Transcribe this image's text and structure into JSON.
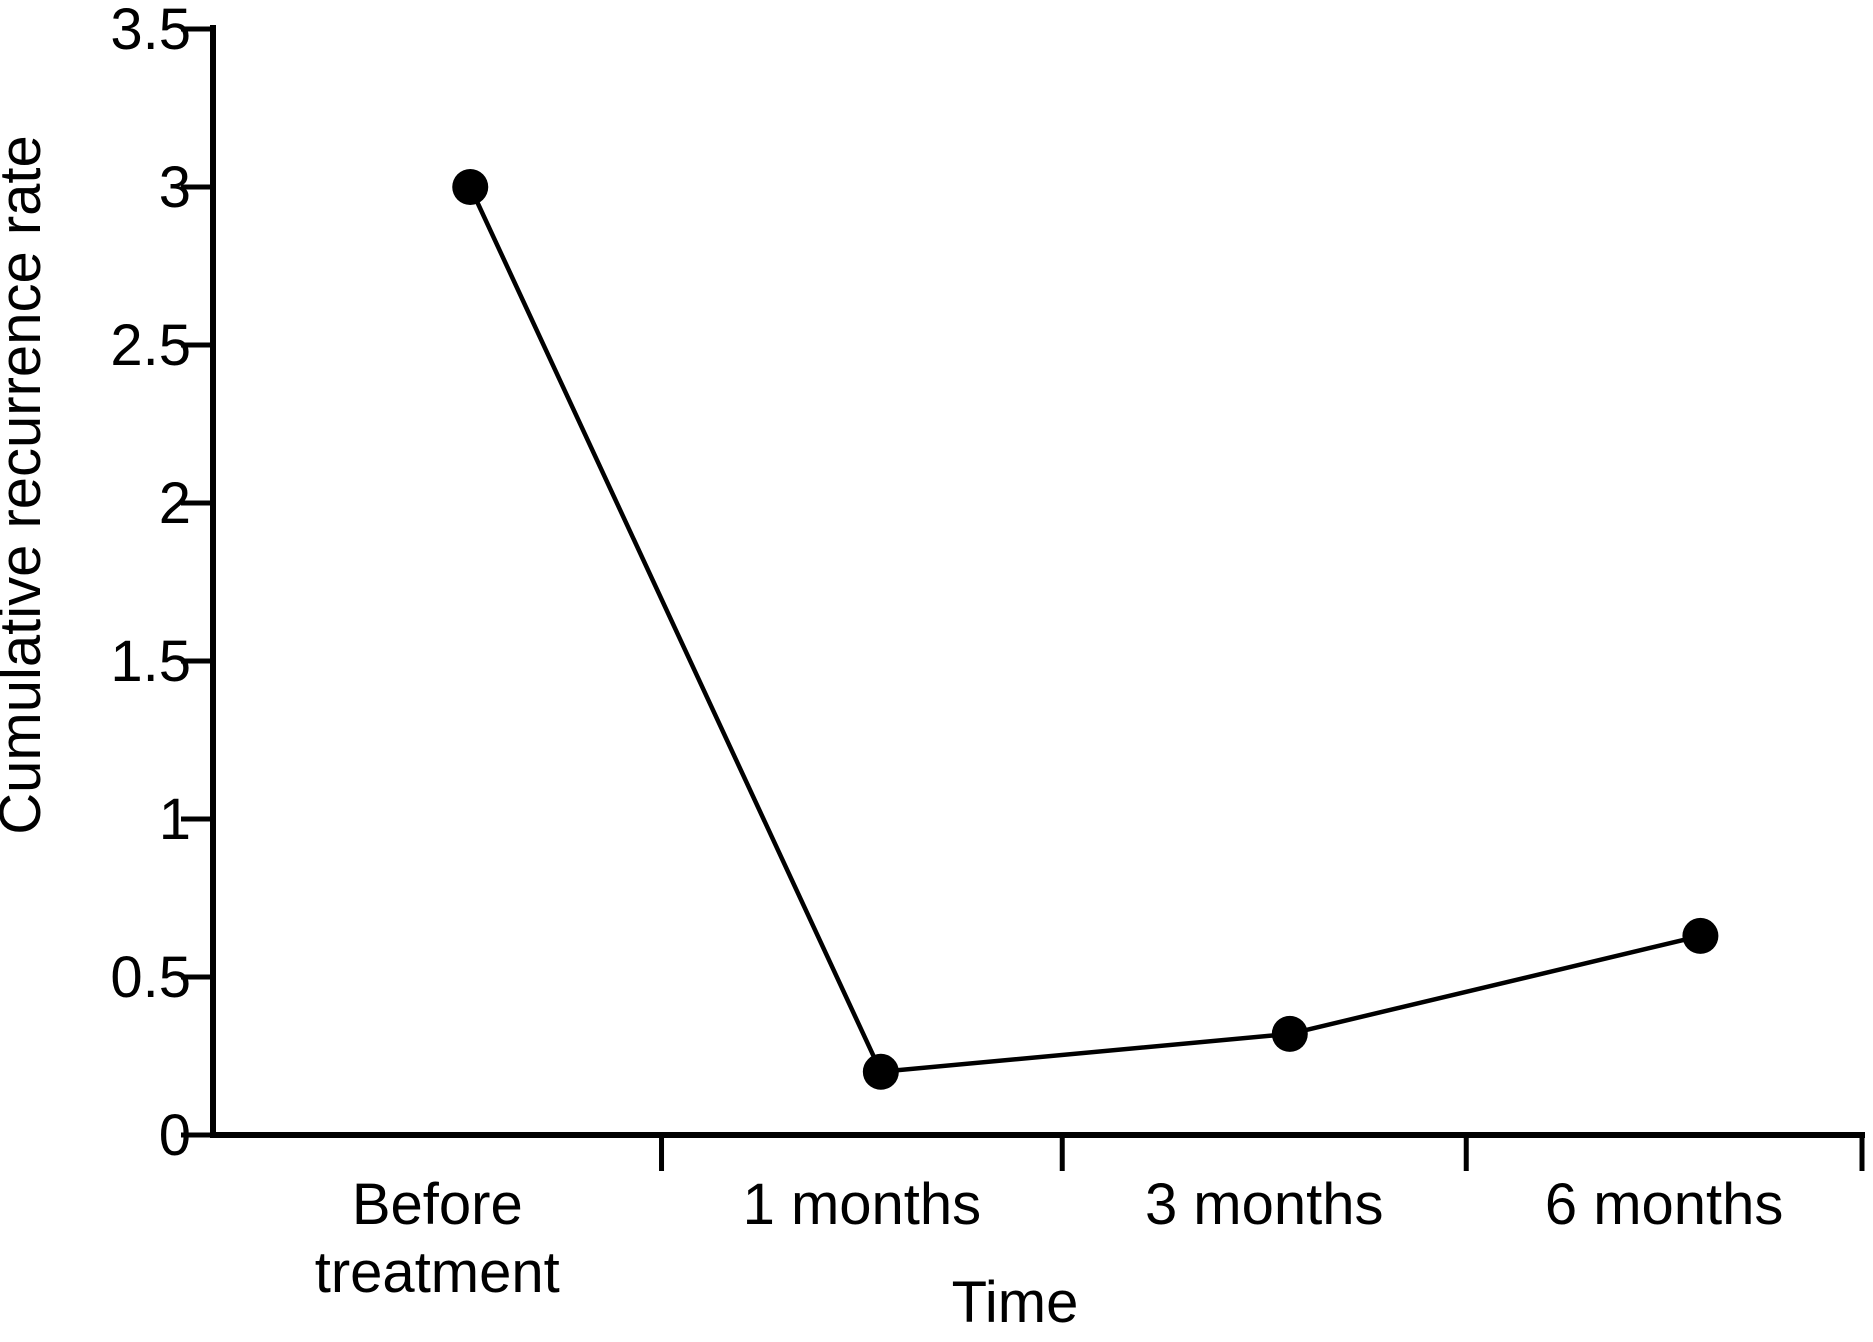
{
  "figure": {
    "background": "#ffffff",
    "ink_color": "#000000"
  },
  "chart_data": {
    "type": "line",
    "title": "",
    "xlabel": "Time",
    "ylabel": "Cumulative recurrence rate",
    "categories": [
      "Before treatment",
      "1 months",
      "3 months",
      "6 months"
    ],
    "series": [
      {
        "name": "Cumulative recurrence rate",
        "values": [
          3.0,
          0.2,
          0.32,
          0.63
        ]
      }
    ],
    "ylim": [
      0,
      3.5
    ],
    "yticks": [
      0,
      0.5,
      1,
      1.5,
      2,
      2.5,
      3,
      3.5
    ],
    "ytick_labels": [
      "0",
      "0.5",
      "1",
      "1.5",
      "2",
      "2.5",
      "3",
      "3.5"
    ],
    "grid": false,
    "legend": "none",
    "marker": "filled-circle",
    "line_color": "#000000",
    "marker_color": "#000000"
  }
}
